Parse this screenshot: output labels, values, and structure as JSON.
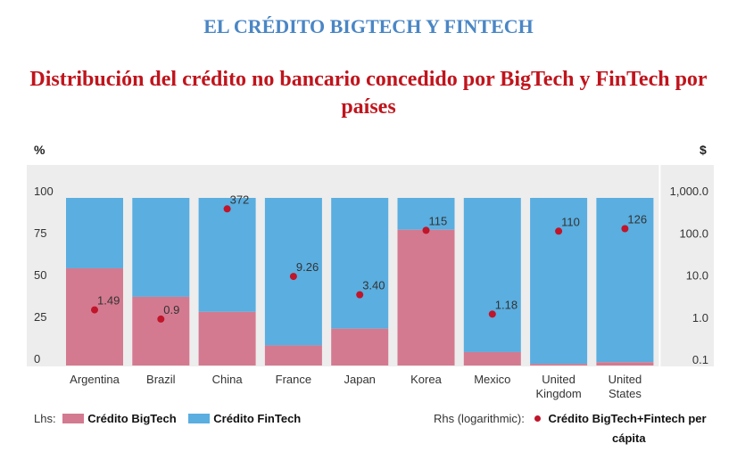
{
  "header": {
    "title": "EL CRÉDITO BIGTECH Y FINTECH",
    "subtitle": "Distribución del crédito no bancario concedido por BigTech y FinTech por países"
  },
  "colors": {
    "bigtech": "#d47a90",
    "fintech": "#5aaee0",
    "dot": "#c0152a",
    "panel": "#ededed"
  },
  "chart_data": {
    "type": "bar",
    "left_unit": "%",
    "right_unit": "$",
    "categories": [
      "Argentina",
      "Brazil",
      "China",
      "France",
      "Japan",
      "Korea",
      "Mexico",
      "United Kingdom",
      "United States"
    ],
    "category_lines": [
      [
        "Argentina"
      ],
      [
        "Brazil"
      ],
      [
        "China"
      ],
      [
        "France"
      ],
      [
        "Japan"
      ],
      [
        "Korea"
      ],
      [
        "Mexico"
      ],
      [
        "United",
        "Kingdom"
      ],
      [
        "United",
        "States"
      ]
    ],
    "series": [
      {
        "name": "Crédito BigTech",
        "axis": "left",
        "values": [
          58,
          41,
          32,
          12,
          22,
          81,
          8,
          1,
          2
        ]
      },
      {
        "name": "Crédito FinTech",
        "axis": "left",
        "values": [
          42,
          59,
          68,
          88,
          78,
          19,
          92,
          99,
          98
        ]
      },
      {
        "name": "Crédito BigTech+Fintech per cápita",
        "axis": "right",
        "type": "scatter",
        "values": [
          1.49,
          0.9,
          372,
          9.26,
          3.4,
          115,
          1.18,
          110,
          126
        ],
        "labels": [
          "1.49",
          "0.9",
          "372",
          "9.26",
          "3.40",
          "115",
          "1.18",
          "110",
          "126"
        ]
      }
    ],
    "left_axis": {
      "ylim": [
        0,
        100
      ],
      "ticks": [
        "0",
        "25",
        "50",
        "75",
        "100"
      ]
    },
    "right_axis": {
      "scale": "log",
      "ylim": [
        0.1,
        1000
      ],
      "ticks": [
        "0.1",
        "1.0",
        "10.0",
        "100.0",
        "1,000.0"
      ]
    },
    "legend": {
      "lhs_label": "Lhs:",
      "rhs_label": "Rhs (logarithmic):",
      "bigtech": "Crédito BigTech",
      "fintech": "Crédito FinTech",
      "percapita_line1": "Crédito BigTech+Fintech per",
      "percapita_line2": "cápita",
      "placement": "bottom"
    }
  }
}
